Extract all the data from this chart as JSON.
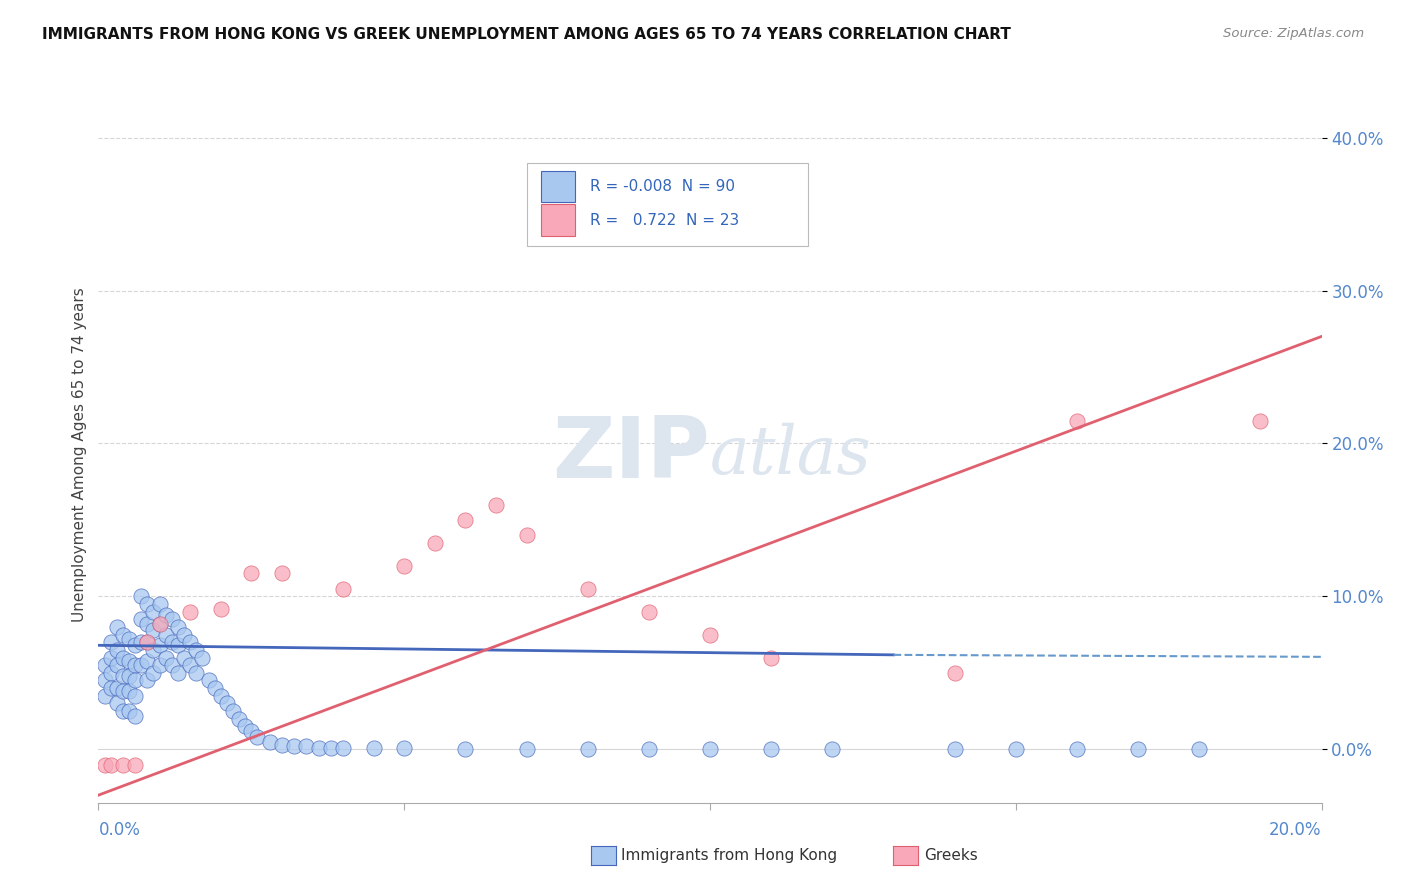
{
  "title": "IMMIGRANTS FROM HONG KONG VS GREEK UNEMPLOYMENT AMONG AGES 65 TO 74 YEARS CORRELATION CHART",
  "source": "Source: ZipAtlas.com",
  "ylabel": "Unemployment Among Ages 65 to 74 years",
  "xmin": 0.0,
  "xmax": 0.2,
  "ymin": -0.035,
  "ymax": 0.42,
  "legend_hk_r": "-0.008",
  "legend_hk_n": "90",
  "legend_gr_r": "0.722",
  "legend_gr_n": "23",
  "color_hk": "#a8c8f0",
  "color_gr": "#f8a8b8",
  "color_hk_line": "#4466bb",
  "color_hk_dash": "#6699cc",
  "color_gr_line": "#e06070",
  "watermark_color": "#dde5ef",
  "background_color": "#ffffff",
  "grid_color": "#cccccc",
  "tick_color": "#5588cc",
  "hk_x": [
    0.001,
    0.001,
    0.001,
    0.002,
    0.002,
    0.002,
    0.002,
    0.003,
    0.003,
    0.003,
    0.003,
    0.003,
    0.004,
    0.004,
    0.004,
    0.004,
    0.004,
    0.005,
    0.005,
    0.005,
    0.005,
    0.005,
    0.006,
    0.006,
    0.006,
    0.006,
    0.006,
    0.007,
    0.007,
    0.007,
    0.007,
    0.008,
    0.008,
    0.008,
    0.008,
    0.008,
    0.009,
    0.009,
    0.009,
    0.009,
    0.01,
    0.01,
    0.01,
    0.01,
    0.011,
    0.011,
    0.011,
    0.012,
    0.012,
    0.012,
    0.013,
    0.013,
    0.013,
    0.014,
    0.014,
    0.015,
    0.015,
    0.016,
    0.016,
    0.017,
    0.018,
    0.019,
    0.02,
    0.021,
    0.022,
    0.023,
    0.024,
    0.025,
    0.026,
    0.028,
    0.03,
    0.032,
    0.034,
    0.036,
    0.038,
    0.04,
    0.045,
    0.05,
    0.06,
    0.07,
    0.08,
    0.09,
    0.1,
    0.11,
    0.12,
    0.14,
    0.15,
    0.16,
    0.17,
    0.18
  ],
  "hk_y": [
    0.055,
    0.045,
    0.035,
    0.07,
    0.06,
    0.05,
    0.04,
    0.08,
    0.065,
    0.055,
    0.04,
    0.03,
    0.075,
    0.06,
    0.048,
    0.038,
    0.025,
    0.072,
    0.058,
    0.048,
    0.038,
    0.025,
    0.068,
    0.055,
    0.045,
    0.035,
    0.022,
    0.1,
    0.085,
    0.07,
    0.055,
    0.095,
    0.082,
    0.07,
    0.058,
    0.045,
    0.09,
    0.078,
    0.065,
    0.05,
    0.095,
    0.082,
    0.068,
    0.055,
    0.088,
    0.075,
    0.06,
    0.085,
    0.07,
    0.055,
    0.08,
    0.068,
    0.05,
    0.075,
    0.06,
    0.07,
    0.055,
    0.065,
    0.05,
    0.06,
    0.045,
    0.04,
    0.035,
    0.03,
    0.025,
    0.02,
    0.015,
    0.012,
    0.008,
    0.005,
    0.003,
    0.002,
    0.002,
    0.001,
    0.001,
    0.001,
    0.001,
    0.001,
    0.0,
    0.0,
    0.0,
    0.0,
    0.0,
    0.0,
    0.0,
    0.0,
    0.0,
    0.0,
    0.0,
    0.0
  ],
  "gr_x": [
    0.001,
    0.002,
    0.004,
    0.006,
    0.008,
    0.01,
    0.015,
    0.02,
    0.025,
    0.03,
    0.04,
    0.05,
    0.055,
    0.06,
    0.065,
    0.07,
    0.08,
    0.09,
    0.1,
    0.11,
    0.14,
    0.16,
    0.19
  ],
  "gr_y": [
    -0.01,
    -0.01,
    -0.01,
    -0.01,
    0.07,
    0.082,
    0.09,
    0.092,
    0.115,
    0.115,
    0.105,
    0.12,
    0.135,
    0.15,
    0.16,
    0.14,
    0.105,
    0.09,
    0.075,
    0.06,
    0.05,
    0.215,
    0.215
  ],
  "hk_line_y0": 0.068,
  "hk_line_y1": 0.065,
  "gr_line_y0": -0.03,
  "gr_line_y1": 0.27
}
